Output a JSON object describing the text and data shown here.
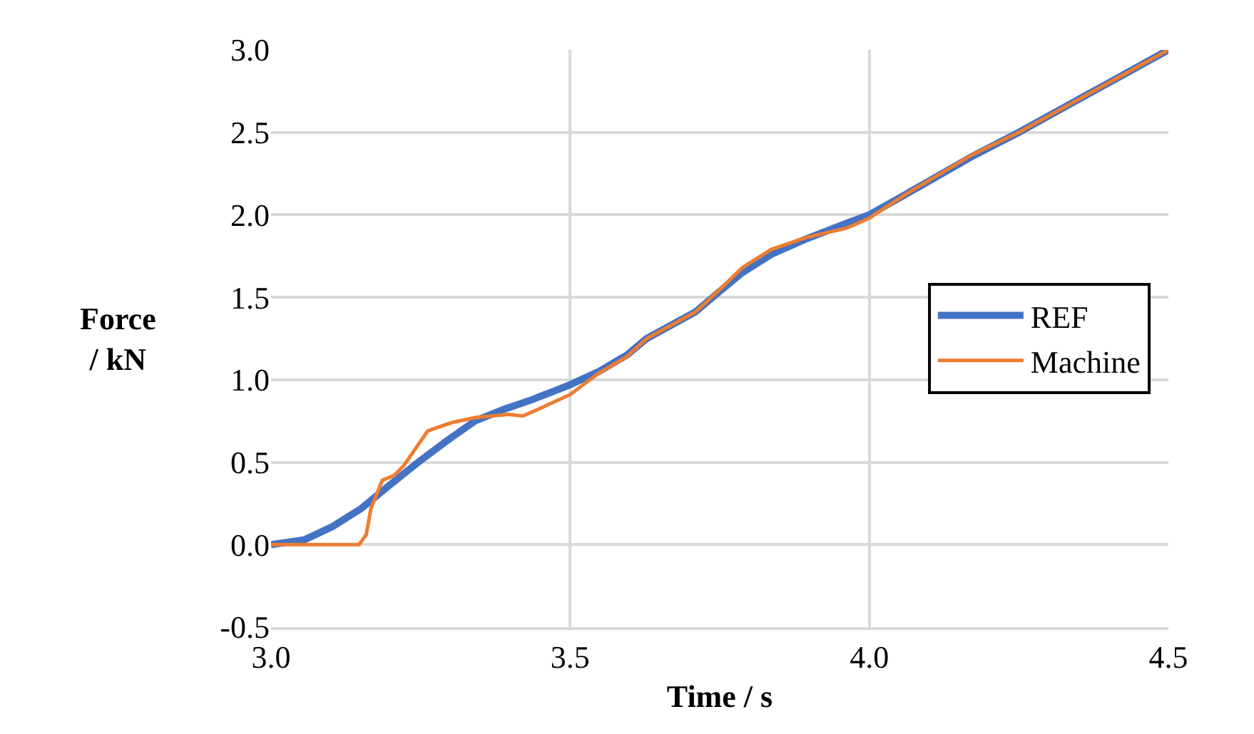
{
  "chart_data": {
    "type": "line",
    "xlabel": "Time / s",
    "ylabel": "Force\n/ kN",
    "xlim": [
      3.0,
      4.5
    ],
    "xticks": [
      {
        "value": 3.0,
        "label": "3.0"
      },
      {
        "value": 3.5,
        "label": "3.5"
      },
      {
        "value": 4.0,
        "label": "4.0"
      },
      {
        "value": 4.5,
        "label": "4.5"
      }
    ],
    "ylim": [
      -0.5,
      3.0
    ],
    "yticks": [
      {
        "value": -0.5,
        "label": "-0.5"
      },
      {
        "value": 0,
        "label": "0.0"
      },
      {
        "value": 0.5,
        "label": "0.5"
      },
      {
        "value": 1.0,
        "label": "1.0"
      },
      {
        "value": 1.5,
        "label": "1.5"
      },
      {
        "value": 2.0,
        "label": "2.0"
      },
      {
        "value": 2.5,
        "label": "2.5"
      },
      {
        "value": 3.0,
        "label": "3.0"
      }
    ],
    "grid": true,
    "legend": "right",
    "marker": "none",
    "line_style": "solid",
    "series": [
      {
        "name": "REF",
        "color": "#4472c4",
        "x": [
          3.0,
          3.056,
          3.103,
          3.151,
          3.198,
          3.246,
          3.294,
          3.341,
          3.389,
          3.437,
          3.5,
          3.548,
          3.595,
          3.628,
          3.709,
          3.748,
          3.788,
          3.836,
          3.892,
          3.963,
          4.0,
          4.059,
          4.17,
          4.25,
          4.33,
          4.42,
          4.5
        ],
        "values": [
          0,
          0.03,
          0.11,
          0.22,
          0.36,
          0.5,
          0.63,
          0.75,
          0.82,
          0.88,
          0.97,
          1.05,
          1.15,
          1.25,
          1.41,
          1.53,
          1.65,
          1.76,
          1.85,
          1.95,
          2.0,
          2.12,
          2.35,
          2.5,
          2.66,
          2.84,
          3.0
        ]
      },
      {
        "name": "Machine",
        "color": "#ed7d31",
        "x": [
          3.0,
          3.147,
          3.159,
          3.167,
          3.186,
          3.206,
          3.222,
          3.262,
          3.302,
          3.341,
          3.397,
          3.421,
          3.452,
          3.5,
          3.548,
          3.595,
          3.628,
          3.709,
          3.748,
          3.788,
          3.836,
          3.892,
          3.963,
          4.0,
          4.059,
          4.17,
          4.25,
          4.33,
          4.42,
          4.5
        ],
        "values": [
          0,
          0,
          0.06,
          0.22,
          0.39,
          0.42,
          0.48,
          0.69,
          0.74,
          0.77,
          0.79,
          0.78,
          0.83,
          0.91,
          1.04,
          1.14,
          1.25,
          1.41,
          1.54,
          1.68,
          1.79,
          1.86,
          1.92,
          1.98,
          2.12,
          2.36,
          2.5,
          2.66,
          2.84,
          3.0
        ]
      }
    ]
  }
}
